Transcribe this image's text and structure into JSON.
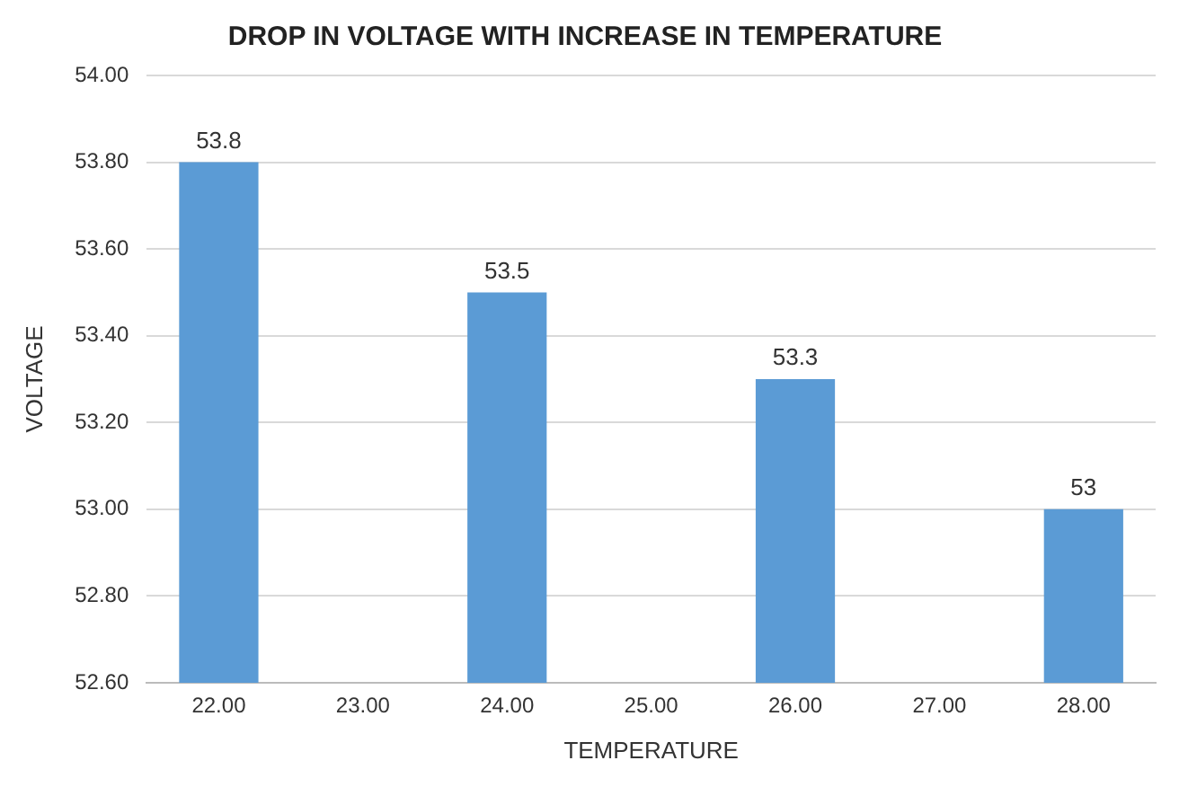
{
  "chart_data": {
    "type": "bar",
    "title": "DROP IN VOLTAGE WITH INCREASE IN TEMPERATURE",
    "xlabel": "TEMPERATURE",
    "ylabel": "VOLTAGE",
    "categories": [
      "22.00",
      "23.00",
      "24.00",
      "25.00",
      "26.00",
      "27.00",
      "28.00"
    ],
    "values": [
      53.8,
      null,
      53.5,
      null,
      53.3,
      null,
      53
    ],
    "color": "#5b9bd5",
    "ylim": [
      52.6,
      54
    ],
    "yticks": [
      {
        "value": 52.6,
        "label": "52.60"
      },
      {
        "value": 52.8,
        "label": "52.80"
      },
      {
        "value": 53,
        "label": "53.00"
      },
      {
        "value": 53.2,
        "label": "53.20"
      },
      {
        "value": 53.4,
        "label": "53.40"
      },
      {
        "value": 53.6,
        "label": "53.60"
      },
      {
        "value": 53.8,
        "label": "53.80"
      },
      {
        "value": 54,
        "label": "54.00"
      }
    ],
    "grid": "y",
    "legend": false,
    "data_labels": true
  }
}
